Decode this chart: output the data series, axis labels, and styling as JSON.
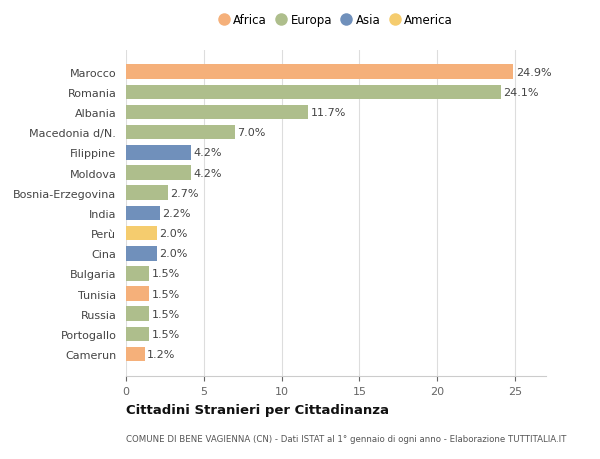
{
  "countries": [
    "Marocco",
    "Romania",
    "Albania",
    "Macedonia d/N.",
    "Filippine",
    "Moldova",
    "Bosnia-Erzegovina",
    "India",
    "Perù",
    "Cina",
    "Bulgaria",
    "Tunisia",
    "Russia",
    "Portogallo",
    "Camerun"
  ],
  "values": [
    24.9,
    24.1,
    11.7,
    7.0,
    4.2,
    4.2,
    2.7,
    2.2,
    2.0,
    2.0,
    1.5,
    1.5,
    1.5,
    1.5,
    1.2
  ],
  "continents": [
    "Africa",
    "Europa",
    "Europa",
    "Europa",
    "Asia",
    "Europa",
    "Europa",
    "Asia",
    "America",
    "Asia",
    "Europa",
    "Africa",
    "Europa",
    "Europa",
    "Africa"
  ],
  "colors": {
    "Africa": "#F5B07A",
    "Europa": "#AEBE8C",
    "Asia": "#7090BB",
    "America": "#F5CC6E"
  },
  "legend_order": [
    "Africa",
    "Europa",
    "Asia",
    "America"
  ],
  "title": "Cittadini Stranieri per Cittadinanza",
  "subtitle": "COMUNE DI BENE VAGIENNA (CN) - Dati ISTAT al 1° gennaio di ogni anno - Elaborazione TUTTITALIA.IT",
  "xlim": [
    0,
    27
  ],
  "xticks": [
    0,
    5,
    10,
    15,
    20,
    25
  ],
  "background_color": "#ffffff",
  "plot_background": "#ffffff",
  "grid_color": "#dddddd",
  "label_fontsize": 8.0,
  "value_fontsize": 8.0,
  "bar_height": 0.72
}
